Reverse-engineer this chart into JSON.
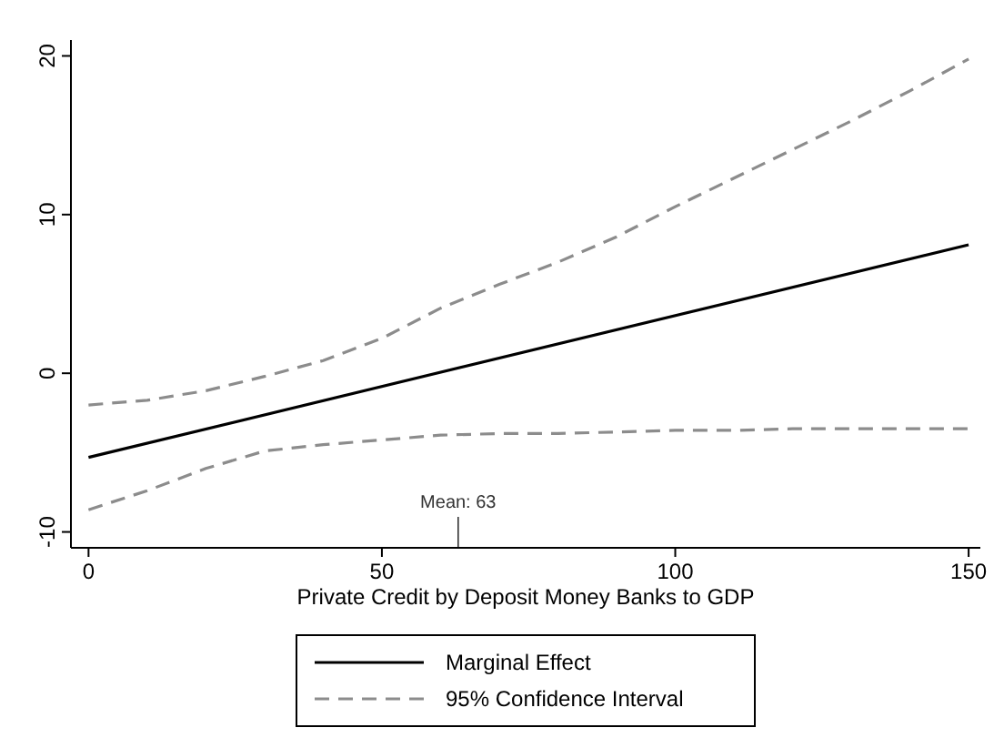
{
  "chart_data": {
    "type": "line",
    "xlabel": "Private Credit by Deposit Money Banks to GDP",
    "x": [
      0,
      10,
      20,
      30,
      40,
      50,
      60,
      70,
      80,
      90,
      100,
      110,
      120,
      130,
      140,
      150
    ],
    "series": [
      {
        "name": "Marginal Effect",
        "color": "#000000",
        "line_style": "solid",
        "x": [
          0,
          150
        ],
        "values": [
          -5.3,
          8.1
        ]
      },
      {
        "name": "95% Confidence Interval",
        "color": "#8c8c8c",
        "line_style": "dashed",
        "values": [
          -2.0,
          -1.7,
          -1.1,
          -0.2,
          0.8,
          2.2,
          4.1,
          5.6,
          7.0,
          8.6,
          10.5,
          12.3,
          14.1,
          15.9,
          17.8,
          19.8
        ]
      },
      {
        "color": "#8c8c8c",
        "line_style": "dashed",
        "values": [
          -8.6,
          -7.4,
          -6.0,
          -4.9,
          -4.5,
          -4.2,
          -3.9,
          -3.8,
          -3.8,
          -3.7,
          -3.6,
          -3.6,
          -3.5,
          -3.5,
          -3.5,
          -3.5
        ]
      }
    ],
    "xlim": [
      -3,
      152
    ],
    "ylim": [
      -11,
      21
    ],
    "xticks": [
      0,
      50,
      100,
      150
    ],
    "yticks": [
      -10,
      0,
      10,
      20
    ],
    "ref_lines": [
      {
        "axis": "x",
        "value": 63,
        "label": "Mean: 63"
      }
    ],
    "grid": false,
    "legend": "bottom"
  }
}
